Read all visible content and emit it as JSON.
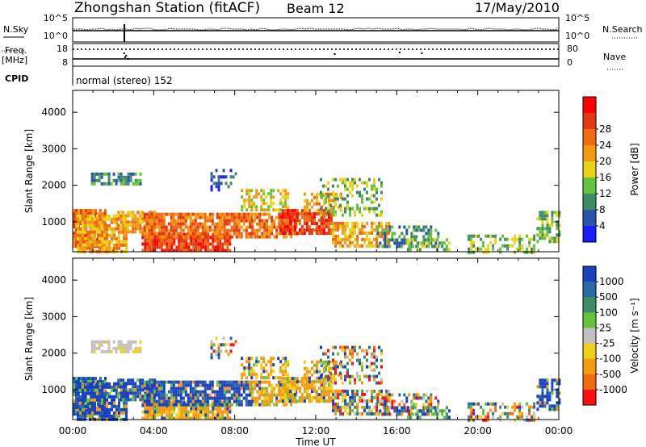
{
  "header": {
    "station_title": "Zhongshan Station (fitACF)",
    "beam_label": "Beam 12",
    "date_label": "17/May/2010"
  },
  "top_panels": {
    "nsky_label": "N.Sky",
    "nsearch_label": "N.Search",
    "nsky_ticks": [
      "10^5",
      "10^0"
    ],
    "nsearch_ticks": [
      "10^5",
      "10^0"
    ],
    "freq_label_line1": "Freq.",
    "freq_label_line2": "[MHz]",
    "freq_ticks": [
      "18",
      "8"
    ],
    "nave_label": "Nave",
    "nave_ticks": [
      "80",
      "0"
    ],
    "cpid_label": "CPID",
    "cpid_text": "normal (stereo) 152"
  },
  "chart_data": [
    {
      "type": "heatmap",
      "name": "power-panel",
      "ylabel": "Slant Range [km]",
      "y_ticks": [
        1000,
        2000,
        3000,
        4000
      ],
      "ylim": [
        180,
        4600
      ],
      "xlabel": "Time UT",
      "x_ticks": [
        "00:00",
        "04:00",
        "08:00",
        "12:00",
        "16:00",
        "20:00",
        "00:00"
      ],
      "xlim_hours": [
        0,
        24
      ],
      "colorbar": {
        "label": "Power [dB]",
        "ticks": [
          "4",
          "8",
          "12",
          "16",
          "20",
          "24",
          "28"
        ],
        "colors": [
          "#1a1aff",
          "#2a55a6",
          "#3e8c66",
          "#66c23b",
          "#e8d21a",
          "#f39a12",
          "#f06a14",
          "#e23a10",
          "#ff0000"
        ]
      }
    },
    {
      "type": "heatmap",
      "name": "velocity-panel",
      "ylabel": "Slant Range [km]",
      "y_ticks": [
        1000,
        2000,
        3000,
        4000
      ],
      "ylim": [
        180,
        4600
      ],
      "xlabel": "Time UT",
      "x_ticks": [
        "00:00",
        "04:00",
        "08:00",
        "12:00",
        "16:00",
        "20:00",
        "00:00"
      ],
      "xlim_hours": [
        0,
        24
      ],
      "colorbar": {
        "label": "Velocity [m s⁻¹]",
        "ticks": [
          "1000",
          "500",
          "100",
          "25",
          "-25",
          "-100",
          "-500",
          "-1000"
        ],
        "colors": [
          "#1a3fbf",
          "#2a6aa8",
          "#3e8c6a",
          "#66c23b",
          "#c0c0c0",
          "#f0d01a",
          "#f39a12",
          "#f06a14",
          "#ff1010"
        ]
      }
    }
  ],
  "x_axis": {
    "label": "Time UT",
    "ticks": [
      "00:00",
      "04:00",
      "08:00",
      "12:00",
      "16:00",
      "20:00",
      "00:00"
    ]
  }
}
